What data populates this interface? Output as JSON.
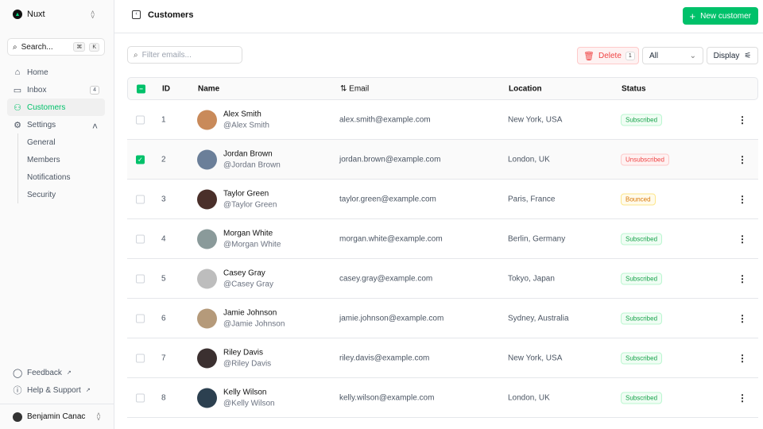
{
  "sidebar": {
    "team": "Nuxt",
    "search": {
      "label": "Search...",
      "kbd1": "⌘",
      "kbd2": "K"
    },
    "items": [
      {
        "label": "Home",
        "icon": "home-icon",
        "glyph": "⌂"
      },
      {
        "label": "Inbox",
        "icon": "inbox-icon",
        "glyph": "▭",
        "badge": "4"
      },
      {
        "label": "Customers",
        "icon": "users-icon",
        "glyph": "⚇",
        "active": true
      },
      {
        "label": "Settings",
        "icon": "gear-icon",
        "glyph": "⚙"
      }
    ],
    "settings_sub": [
      "General",
      "Members",
      "Notifications",
      "Security"
    ],
    "bottom": [
      {
        "label": "Feedback",
        "icon": "chat-icon",
        "glyph": "◯"
      },
      {
        "label": "Help & Support",
        "icon": "info-icon",
        "glyph": "ⓘ"
      }
    ],
    "user": "Benjamin Canac"
  },
  "header": {
    "title": "Customers",
    "new_button": "New customer"
  },
  "toolbar": {
    "filter_placeholder": "Filter emails...",
    "delete_label": "Delete",
    "delete_count": "1",
    "status_filter": "All",
    "display_label": "Display"
  },
  "table": {
    "columns": [
      "ID",
      "Name",
      "Email",
      "Location",
      "Status"
    ],
    "rows": [
      {
        "id": "1",
        "name": "Alex Smith",
        "handle": "@Alex Smith",
        "email": "alex.smith@example.com",
        "location": "New York, USA",
        "status": "Subscribed",
        "selected": false,
        "avatar": "#c98a5a"
      },
      {
        "id": "2",
        "name": "Jordan Brown",
        "handle": "@Jordan Brown",
        "email": "jordan.brown@example.com",
        "location": "London, UK",
        "status": "Unsubscribed",
        "selected": true,
        "avatar": "#6b7f99"
      },
      {
        "id": "3",
        "name": "Taylor Green",
        "handle": "@Taylor Green",
        "email": "taylor.green@example.com",
        "location": "Paris, France",
        "status": "Bounced",
        "selected": false,
        "avatar": "#4a2f2a"
      },
      {
        "id": "4",
        "name": "Morgan White",
        "handle": "@Morgan White",
        "email": "morgan.white@example.com",
        "location": "Berlin, Germany",
        "status": "Subscribed",
        "selected": false,
        "avatar": "#8a9a9a"
      },
      {
        "id": "5",
        "name": "Casey Gray",
        "handle": "@Casey Gray",
        "email": "casey.gray@example.com",
        "location": "Tokyo, Japan",
        "status": "Subscribed",
        "selected": false,
        "avatar": "#bdbdbd"
      },
      {
        "id": "6",
        "name": "Jamie Johnson",
        "handle": "@Jamie Johnson",
        "email": "jamie.johnson@example.com",
        "location": "Sydney, Australia",
        "status": "Subscribed",
        "selected": false,
        "avatar": "#b59a7a"
      },
      {
        "id": "7",
        "name": "Riley Davis",
        "handle": "@Riley Davis",
        "email": "riley.davis@example.com",
        "location": "New York, USA",
        "status": "Subscribed",
        "selected": false,
        "avatar": "#3b3030"
      },
      {
        "id": "8",
        "name": "Kelly Wilson",
        "handle": "@Kelly Wilson",
        "email": "kelly.wilson@example.com",
        "location": "London, UK",
        "status": "Subscribed",
        "selected": false,
        "avatar": "#2c4050"
      }
    ]
  },
  "colors": {
    "accent": "#00c16a",
    "Subscribed": [
      "#16a34a",
      "#f0fdf4",
      "#bbf7d0"
    ],
    "Unsubscribed": [
      "#ef4444",
      "#fef2f2",
      "#fecaca"
    ],
    "Bounced": [
      "#d97706",
      "#fffbeb",
      "#fde68a"
    ]
  }
}
